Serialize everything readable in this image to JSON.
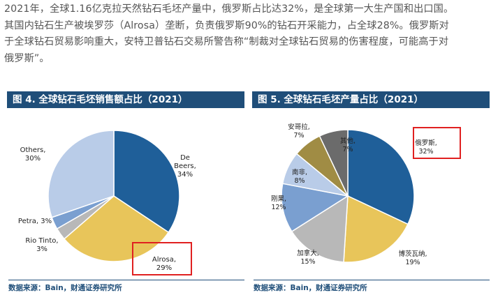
{
  "paragraph": {
    "line1": "2021年，全球1.16亿克拉天然钻石毛坯产量中，俄罗斯占比达32%，是全球第一大生产国和出口国。",
    "line2": "其国内钻石生产被埃罗莎（Alrosa）垄断，负责俄罗斯90%的钻石开采能力，占全球28%。俄罗斯对",
    "line3": "于全球钻石贸易影响重大，安特卫普钻石交易所警告称“制裁对全球钻石贸易的伤害程度，可能高于对",
    "line4": "俄罗斯”。"
  },
  "panels": {
    "left": {
      "title": "图 4. 全球钻石毛坯销售额占比（2021）",
      "source": "数据来源：Bain，财通证券研究所"
    },
    "right": {
      "title": "图 5. 全球钻石毛坯产量占比（2021）",
      "source": "数据来源：Bain，财通证券研究所"
    }
  },
  "colors": {
    "title_bg": "#1f4e79",
    "highlight": "#e02020",
    "slice_blue": "#1f5f99",
    "slice_yellow": "#e8c55a",
    "slice_gray": "#b8b8b8",
    "slice_midblue": "#7a9fd0",
    "slice_lightblue": "#b9cce8",
    "slice_olive": "#a08c44",
    "slice_darkgray": "#6b6b6b"
  },
  "chart_data": [
    {
      "type": "pie",
      "title": "图 4. 全球钻石毛坯销售额占比（2021）",
      "slices": [
        {
          "name_lines": [
            "De",
            "Beers,"
          ],
          "value": 34,
          "value_label": "34%",
          "color": "#1f5f99",
          "highlight": false
        },
        {
          "name_lines": [
            "Alrosa,"
          ],
          "value": 29,
          "value_label": "29%",
          "color": "#e8c55a",
          "highlight": true
        },
        {
          "name_lines": [
            "Rio Tinto,"
          ],
          "value": 3,
          "value_label": "3%",
          "color": "#b8b8b8",
          "highlight": false
        },
        {
          "name_lines": [
            "Petra, 3%"
          ],
          "value": 3,
          "value_label": "",
          "color": "#7a9fd0",
          "highlight": false
        },
        {
          "name_lines": [
            "Others,"
          ],
          "value": 30,
          "value_label": "30%",
          "color": "#b9cce8",
          "highlight": false
        }
      ]
    },
    {
      "type": "pie",
      "title": "图 5. 全球钻石毛坯产量占比（2021）",
      "slices": [
        {
          "name_lines": [
            "俄罗斯,"
          ],
          "value": 32,
          "value_label": "32%",
          "color": "#1f5f99",
          "highlight": true
        },
        {
          "name_lines": [
            "博茨瓦纳,"
          ],
          "value": 19,
          "value_label": "19%",
          "color": "#e8c55a",
          "highlight": false
        },
        {
          "name_lines": [
            "加拿大,"
          ],
          "value": 15,
          "value_label": "15%",
          "color": "#b8b8b8",
          "highlight": false
        },
        {
          "name_lines": [
            "刚果,"
          ],
          "value": 12,
          "value_label": "12%",
          "color": "#7a9fd0",
          "highlight": false
        },
        {
          "name_lines": [
            "南非,"
          ],
          "value": 8,
          "value_label": "8%",
          "color": "#b9cce8",
          "highlight": false
        },
        {
          "name_lines": [
            "安哥拉,"
          ],
          "value": 7,
          "value_label": "7%",
          "color": "#a08c44",
          "highlight": false
        },
        {
          "name_lines": [
            "其他,"
          ],
          "value": 7,
          "value_label": "7%",
          "color": "#6b6b6b",
          "highlight": false
        }
      ]
    }
  ]
}
